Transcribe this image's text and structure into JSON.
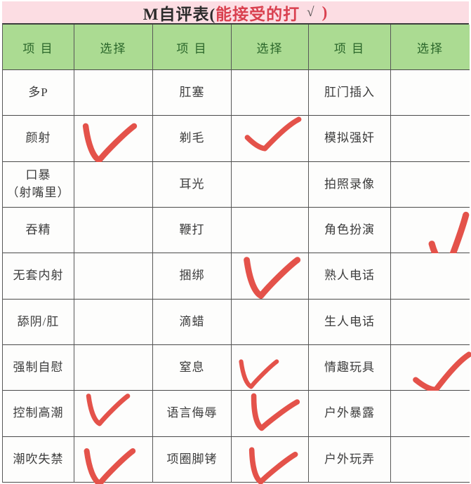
{
  "title": {
    "prefix": "M自评表(",
    "highlight": "能接受的打",
    "check_symbol": "√",
    "suffix": ")"
  },
  "header": {
    "item_label": "项 目",
    "choice_label": "选择"
  },
  "table": {
    "rows": [
      [
        {
          "item": "多P",
          "checked": false
        },
        {
          "item": "肛塞",
          "checked": false
        },
        {
          "item": "肛门插入",
          "checked": false
        }
      ],
      [
        {
          "item": "颜射",
          "checked": true
        },
        {
          "item": "剃毛",
          "checked": true
        },
        {
          "item": "模拟强奸",
          "checked": false
        }
      ],
      [
        {
          "item": "口暴\n（射嘴里）",
          "checked": false
        },
        {
          "item": "耳光",
          "checked": false
        },
        {
          "item": "拍照录像",
          "checked": false
        }
      ],
      [
        {
          "item": "吞精",
          "checked": false
        },
        {
          "item": "鞭打",
          "checked": false
        },
        {
          "item": "角色扮演",
          "checked": true
        }
      ],
      [
        {
          "item": "无套内射",
          "checked": false
        },
        {
          "item": "捆绑",
          "checked": true
        },
        {
          "item": "熟人电话",
          "checked": false
        }
      ],
      [
        {
          "item": "舔阴/肛",
          "checked": false
        },
        {
          "item": "滴蜡",
          "checked": false
        },
        {
          "item": "生人电话",
          "checked": false
        }
      ],
      [
        {
          "item": "强制自慰",
          "checked": false
        },
        {
          "item": "窒息",
          "checked": true
        },
        {
          "item": "情趣玩具",
          "checked": true
        }
      ],
      [
        {
          "item": "控制高潮",
          "checked": true
        },
        {
          "item": "语言侮辱",
          "checked": true
        },
        {
          "item": "户外暴露",
          "checked": false
        }
      ],
      [
        {
          "item": "潮吹失禁",
          "checked": true
        },
        {
          "item": "项圈脚铐",
          "checked": true
        },
        {
          "item": "户外玩弄",
          "checked": false
        }
      ]
    ]
  },
  "colors": {
    "title_bg": "#fcdde3",
    "title_red": "#d9404f",
    "header_bg": "#abdb92",
    "header_text": "#2a662a",
    "check_red": "#e4524a",
    "border": "#585858"
  }
}
